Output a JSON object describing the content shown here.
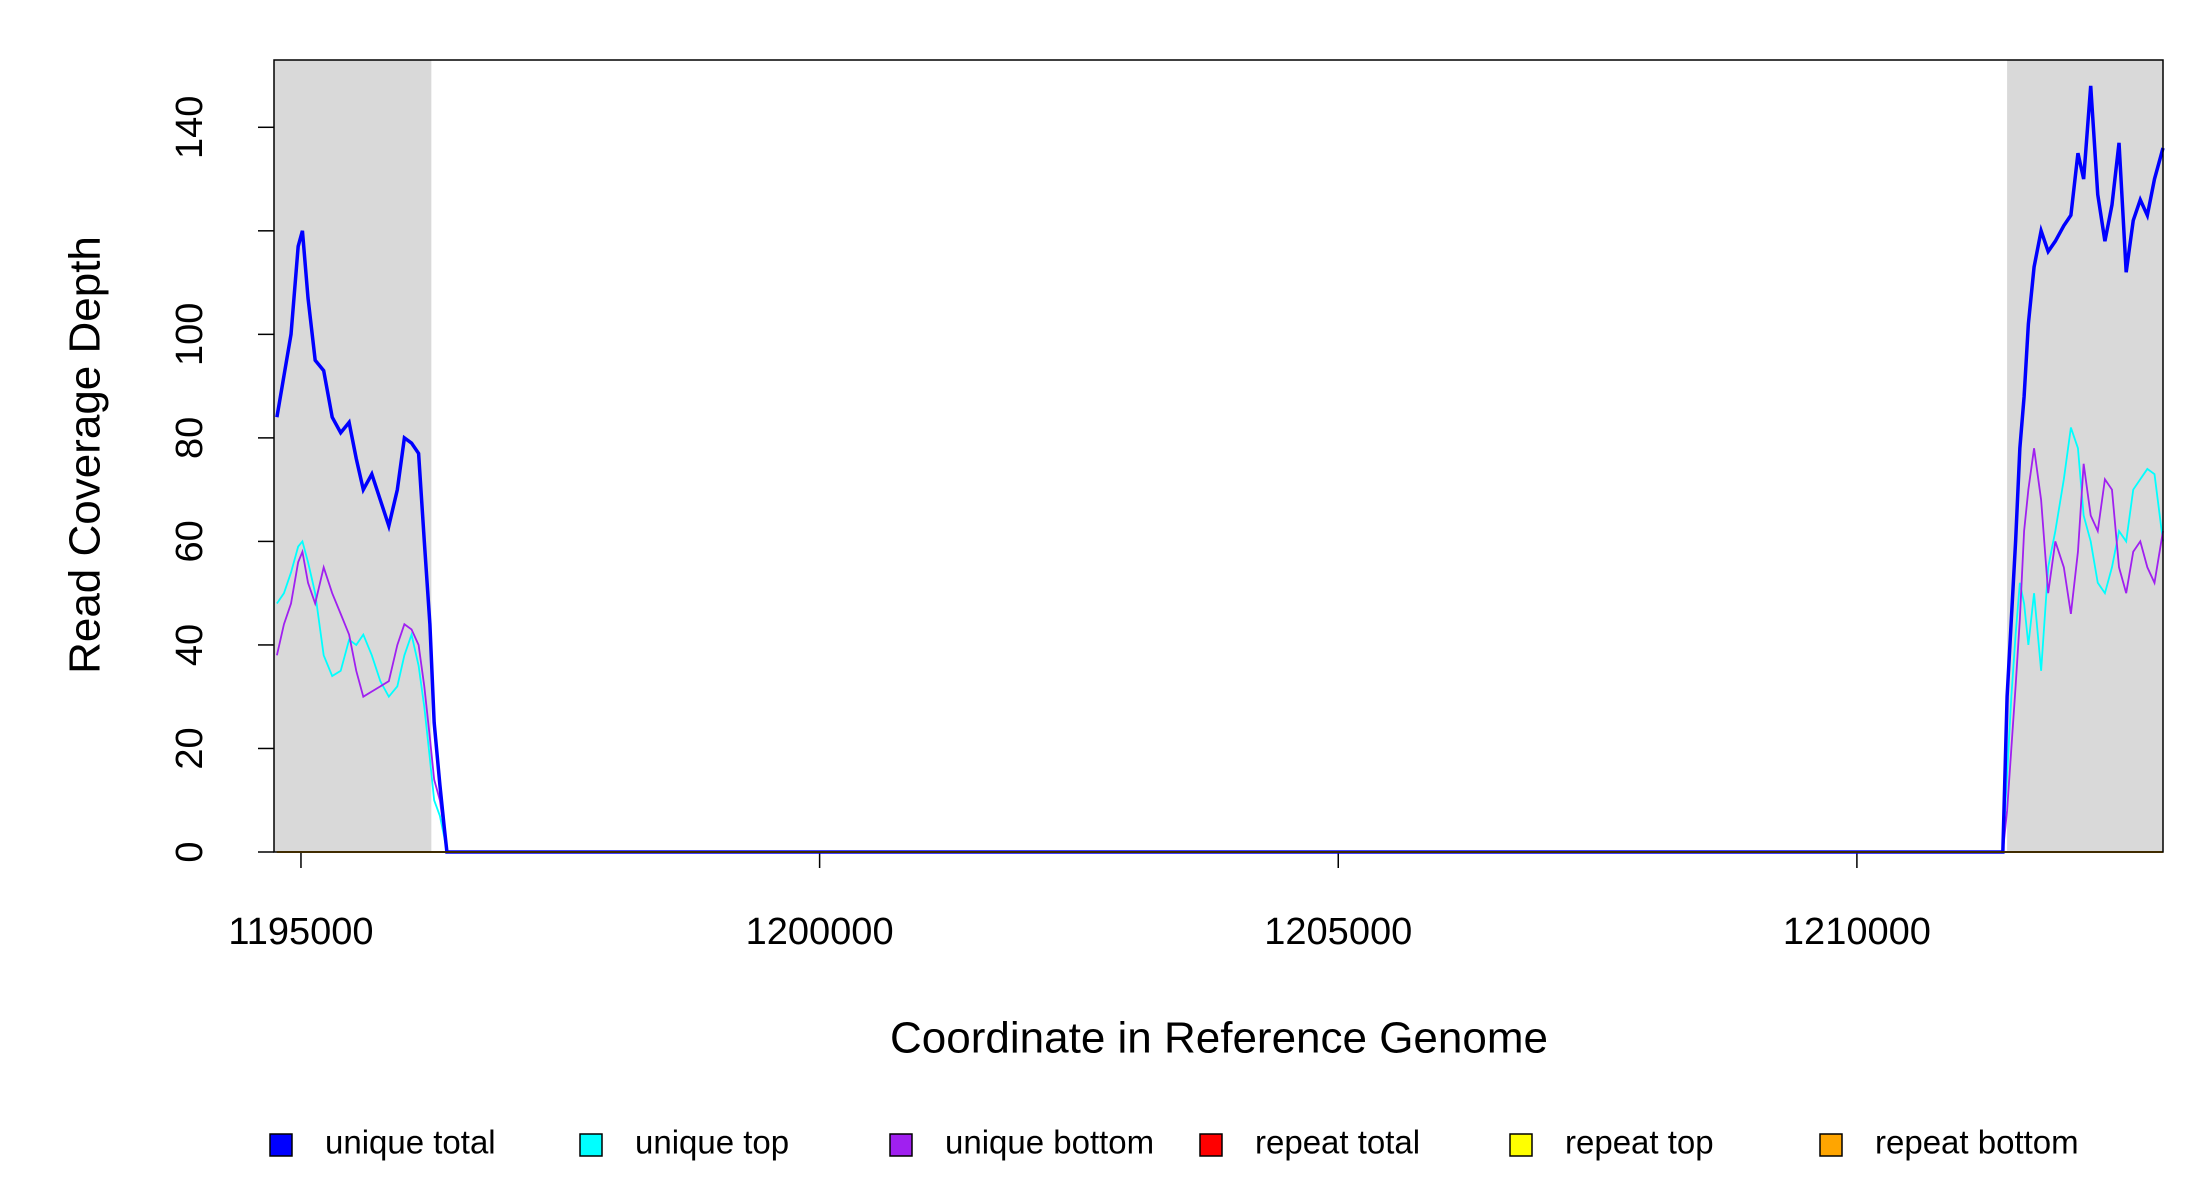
{
  "chart_data": {
    "type": "line",
    "xlabel": "Coordinate in Reference Genome",
    "ylabel": "Read Coverage Depth",
    "xlim": [
      1194740,
      1212951
    ],
    "ylim": [
      0,
      153
    ],
    "xticks": [
      1195000,
      1200000,
      1205000,
      1210000
    ],
    "yticks": [
      0,
      20,
      40,
      60,
      80,
      100,
      {
        "value": 120,
        "label": null
      },
      140
    ],
    "shaded_regions": [
      [
        1194740,
        1196257
      ],
      [
        1211448,
        1212951
      ]
    ],
    "x": [
      1194768,
      1194836,
      1194904,
      1194973,
      1195014,
      1195068,
      1195137,
      1195219,
      1195301,
      1195383,
      1195464,
      1195533,
      1195601,
      1195683,
      1195765,
      1195847,
      1195929,
      1195997,
      1196066,
      1196134,
      1196189,
      1196243,
      1196284,
      1196339,
      1196380,
      1196407,
      1211407,
      1211448,
      1211489,
      1211530,
      1211571,
      1211612,
      1211653,
      1211708,
      1211776,
      1211844,
      1211913,
      1211995,
      1212063,
      1212131,
      1212186,
      1212254,
      1212322,
      1212391,
      1212459,
      1212527,
      1212596,
      1212664,
      1212732,
      1212800,
      1212869,
      1212951
    ],
    "series": [
      {
        "name": "unique total",
        "color": "#0000ff",
        "values": [
          84,
          92,
          100,
          117,
          120,
          107,
          95,
          93,
          84,
          81,
          83,
          76,
          70,
          73,
          68,
          63,
          70,
          80,
          79,
          77,
          60,
          44,
          25,
          13,
          5,
          0,
          0,
          30,
          45,
          60,
          78,
          88,
          102,
          113,
          120,
          116,
          118,
          121,
          123,
          135,
          130,
          148,
          127,
          118,
          125,
          137,
          112,
          122,
          126,
          123,
          130,
          136
        ]
      },
      {
        "name": "unique top",
        "color": "#00ffff",
        "values": [
          48,
          50,
          54,
          59,
          60,
          56,
          50,
          38,
          34,
          35,
          41,
          40,
          42,
          38,
          33,
          30,
          32,
          38,
          42,
          36,
          28,
          18,
          10,
          7,
          3,
          0,
          0,
          15,
          30,
          42,
          52,
          48,
          40,
          50,
          35,
          55,
          62,
          72,
          82,
          78,
          65,
          60,
          52,
          50,
          55,
          62,
          60,
          70,
          72,
          74,
          73,
          60
        ]
      },
      {
        "name": "unique bottom",
        "color": "#a020f0",
        "values": [
          38,
          44,
          48,
          56,
          58,
          52,
          48,
          55,
          50,
          46,
          42,
          35,
          30,
          31,
          32,
          33,
          40,
          44,
          43,
          40,
          32,
          22,
          14,
          10,
          4,
          0,
          0,
          8,
          20,
          32,
          45,
          62,
          70,
          78,
          68,
          50,
          60,
          55,
          46,
          58,
          75,
          65,
          62,
          72,
          70,
          55,
          50,
          58,
          60,
          55,
          52,
          62
        ]
      },
      {
        "name": "repeat total",
        "color": "#ff0000",
        "values": [
          0,
          0,
          0,
          0,
          0,
          0,
          0,
          0,
          0,
          0,
          0,
          0,
          0,
          0,
          0,
          0,
          0,
          0,
          0,
          0,
          0,
          0,
          0,
          0,
          0,
          0,
          0,
          0,
          0,
          0,
          0,
          0,
          0,
          0,
          0,
          0,
          0,
          0,
          0,
          0,
          0,
          0,
          0,
          0,
          0,
          0,
          0,
          0,
          0,
          0,
          0,
          0
        ]
      },
      {
        "name": "repeat top",
        "color": "#ffff00",
        "values": [
          0,
          0,
          0,
          0,
          0,
          0,
          0,
          0,
          0,
          0,
          0,
          0,
          0,
          0,
          0,
          0,
          0,
          0,
          0,
          0,
          0,
          0,
          0,
          0,
          0,
          0,
          0,
          0,
          0,
          0,
          0,
          0,
          0,
          0,
          0,
          0,
          0,
          0,
          0,
          0,
          0,
          0,
          0,
          0,
          0,
          0,
          0,
          0,
          0,
          0,
          0,
          0
        ]
      },
      {
        "name": "repeat bottom",
        "color": "#ffa500",
        "values": [
          0,
          0,
          0,
          0,
          0,
          0,
          0,
          0,
          0,
          0,
          0,
          0,
          0,
          0,
          0,
          0,
          0,
          0,
          0,
          0,
          0,
          0,
          0,
          0,
          0,
          0,
          0,
          0,
          0,
          0,
          0,
          0,
          0,
          0,
          0,
          0,
          0,
          0,
          0,
          0,
          0,
          0,
          0,
          0,
          0,
          0,
          0,
          0,
          0,
          0,
          0,
          0
        ]
      }
    ],
    "shade_color": "#d9d9d9",
    "legend": "bottom"
  }
}
